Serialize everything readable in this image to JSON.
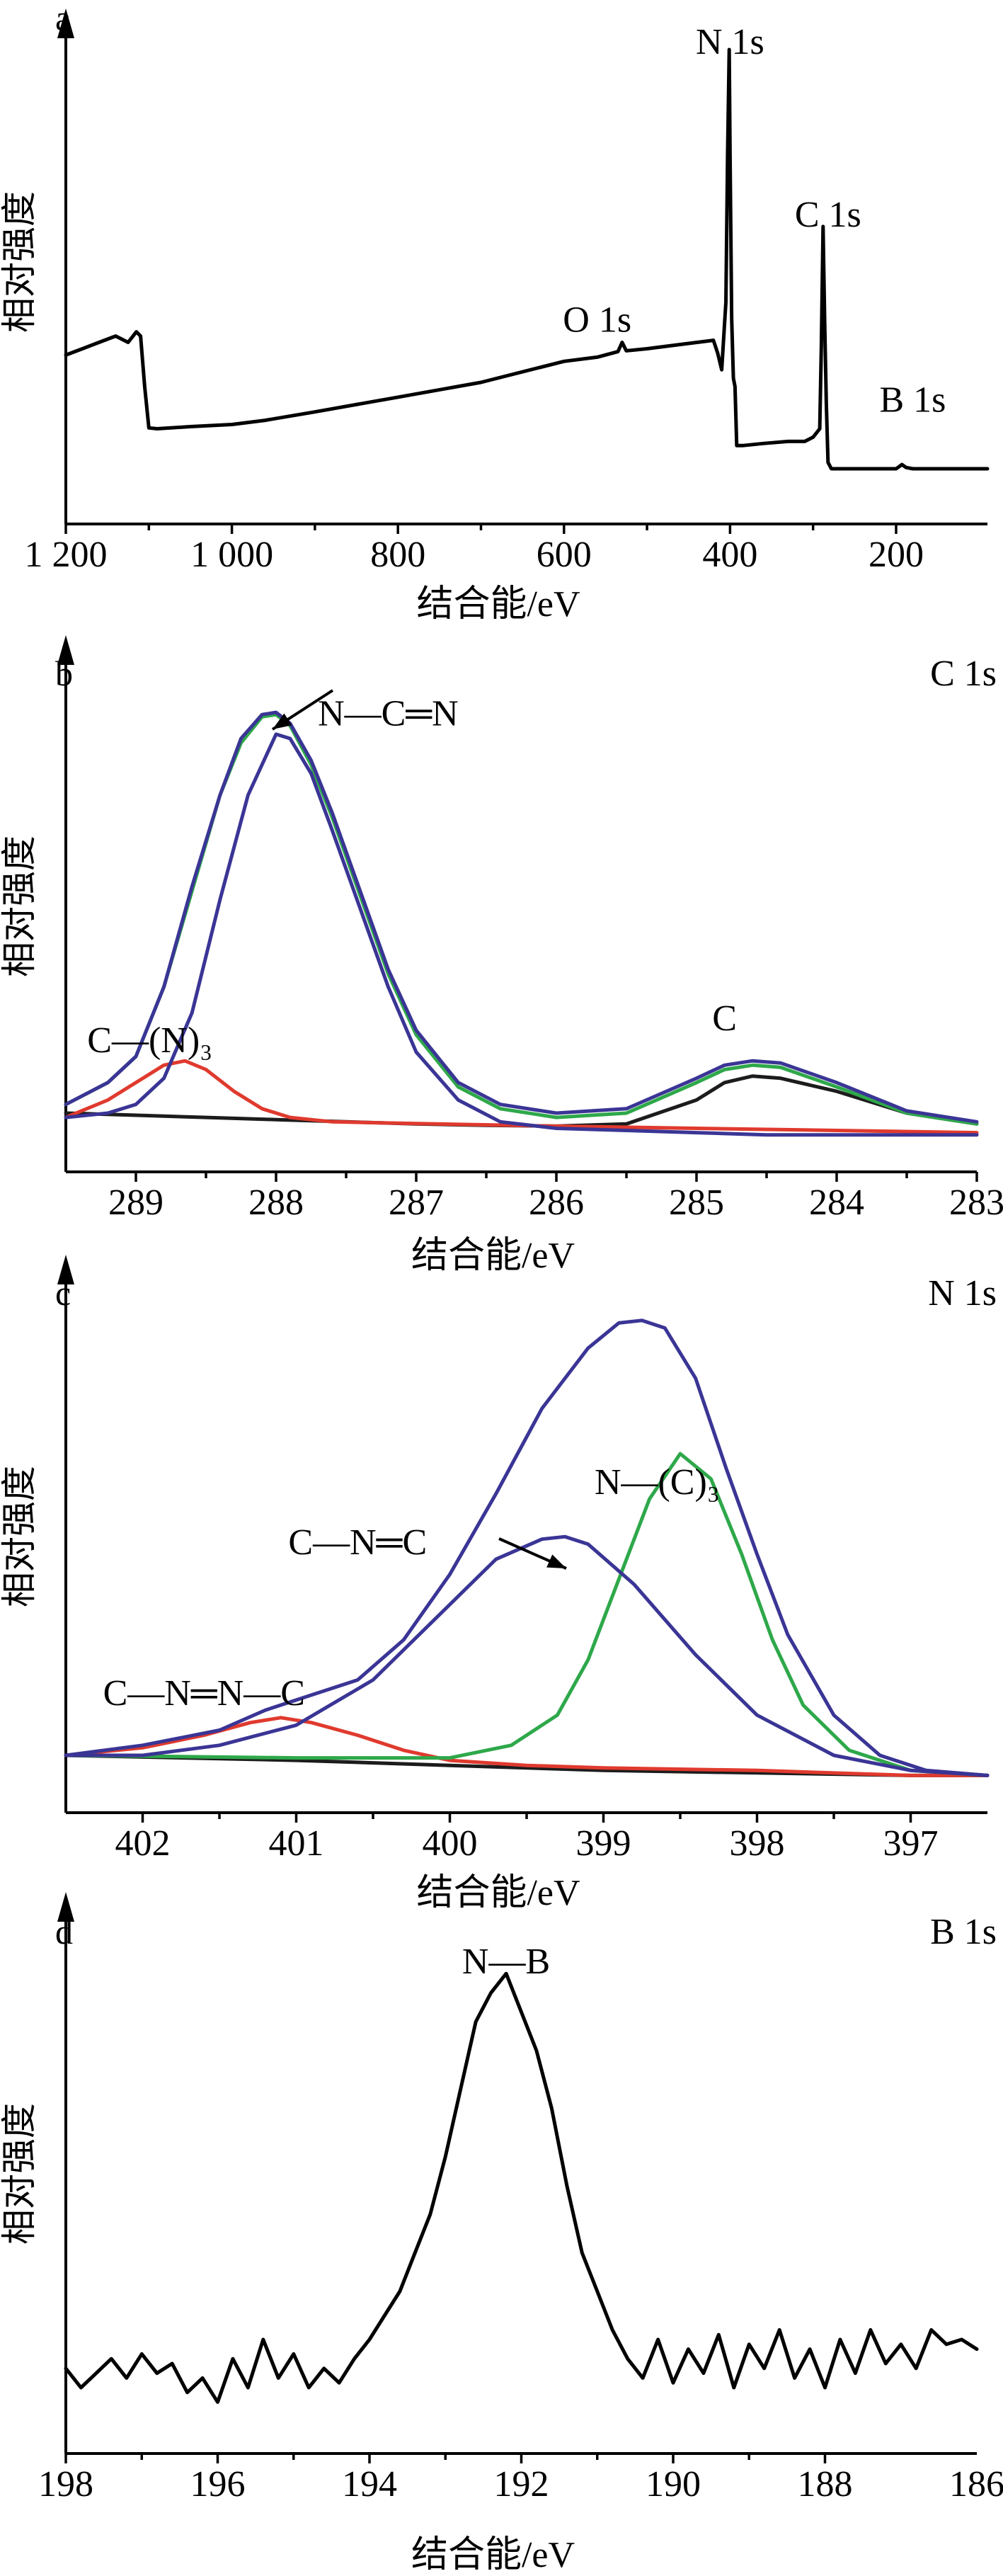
{
  "figure": {
    "y_label": "相对强度",
    "x_label": "结合能/eV"
  },
  "chart_data": [
    {
      "type": "line",
      "panel": "a",
      "xlim": [
        1200,
        90
      ],
      "ylim": [
        0,
        1
      ],
      "ticks": [
        {
          "value": 1200,
          "label": "1 200"
        },
        {
          "value": 1000,
          "label": "1 000"
        },
        {
          "value": 800,
          "label": "800"
        },
        {
          "value": 600,
          "label": "600"
        },
        {
          "value": 400,
          "label": "400"
        },
        {
          "value": 200,
          "label": "200"
        }
      ],
      "xlabel": "结合能/eV",
      "ylabel": "相对强度",
      "annotations": [
        {
          "text": "N 1s",
          "x": 400,
          "y": 0.99
        },
        {
          "text": "C 1s",
          "x": 282,
          "y": 0.58
        },
        {
          "text": "O 1s",
          "x": 560,
          "y": 0.33
        },
        {
          "text": "B 1s",
          "x": 180,
          "y": 0.14
        }
      ],
      "series": [
        {
          "color": "#000000",
          "x": [
            1200,
            1180,
            1160,
            1140,
            1125,
            1115,
            1110,
            1105,
            1100,
            1090,
            1050,
            1000,
            960,
            900,
            800,
            700,
            600,
            560,
            535,
            530,
            525,
            500,
            460,
            420,
            415,
            410,
            405,
            403,
            401,
            400,
            398,
            396,
            394,
            392,
            390,
            385,
            360,
            330,
            310,
            300,
            292,
            290,
            288,
            286,
            284,
            282,
            278,
            270,
            250,
            220,
            200,
            193,
            188,
            180,
            150,
            120,
            90
          ],
          "y": [
            0.275,
            0.29,
            0.305,
            0.32,
            0.305,
            0.33,
            0.32,
            0.2,
            0.102,
            0.1,
            0.105,
            0.11,
            0.12,
            0.14,
            0.175,
            0.21,
            0.26,
            0.27,
            0.283,
            0.305,
            0.285,
            0.29,
            0.3,
            0.31,
            0.28,
            0.24,
            0.4,
            0.75,
            1.0,
            0.75,
            0.36,
            0.22,
            0.2,
            0.06,
            0.06,
            0.06,
            0.065,
            0.07,
            0.07,
            0.08,
            0.1,
            0.3,
            0.58,
            0.35,
            0.16,
            0.02,
            0.005,
            0.005,
            0.005,
            0.005,
            0.005,
            0.015,
            0.008,
            0.005,
            0.005,
            0.005,
            0.005
          ]
        }
      ]
    },
    {
      "type": "line",
      "panel": "b",
      "tag": "C 1s",
      "xlim": [
        289.5,
        283
      ],
      "ylim": [
        0,
        1
      ],
      "ticks": [
        {
          "value": 289,
          "label": "289"
        },
        {
          "value": 288,
          "label": "288"
        },
        {
          "value": 287,
          "label": "287"
        },
        {
          "value": 286,
          "label": "286"
        },
        {
          "value": 285,
          "label": "285"
        },
        {
          "value": 284,
          "label": "284"
        },
        {
          "value": 283,
          "label": "283"
        }
      ],
      "xlabel": "结合能/eV",
      "ylabel": "相对强度",
      "annotations": [
        {
          "text": "N—C═N",
          "x": 287.2,
          "y": 0.96
        },
        {
          "text": "C—(N)₃",
          "x": 288.9,
          "y": 0.21
        },
        {
          "text": "C",
          "x": 284.8,
          "y": 0.26
        }
      ],
      "series": [
        {
          "color": "#1c1c1c",
          "x": [
            289.5,
            289,
            288.5,
            288,
            287.5,
            287,
            286.5,
            286,
            285.5,
            285,
            284.8,
            284.6,
            284.4,
            284,
            283.5,
            283
          ],
          "y": [
            0.07,
            0.065,
            0.06,
            0.055,
            0.05,
            0.045,
            0.042,
            0.04,
            0.045,
            0.1,
            0.14,
            0.155,
            0.15,
            0.12,
            0.07,
            0.045
          ]
        },
        {
          "color": "#e03a2e",
          "x": [
            289.5,
            289.2,
            289,
            288.8,
            288.65,
            288.5,
            288.3,
            288.1,
            287.9,
            287.6,
            287,
            286,
            285,
            284,
            283
          ],
          "y": [
            0.06,
            0.1,
            0.14,
            0.18,
            0.19,
            0.17,
            0.12,
            0.08,
            0.06,
            0.05,
            0.046,
            0.04,
            0.035,
            0.03,
            0.025
          ]
        },
        {
          "color": "#2ea84a",
          "x": [
            289.5,
            289.2,
            289,
            288.8,
            288.6,
            288.4,
            288.25,
            288.1,
            288,
            287.9,
            287.75,
            287.6,
            287.4,
            287.2,
            287,
            286.7,
            286.4,
            286,
            285.5,
            285,
            284.8,
            284.6,
            284.4,
            284,
            283.5,
            283
          ],
          "y": [
            0.09,
            0.14,
            0.2,
            0.36,
            0.58,
            0.8,
            0.92,
            0.98,
            0.985,
            0.96,
            0.87,
            0.75,
            0.57,
            0.39,
            0.25,
            0.13,
            0.08,
            0.06,
            0.07,
            0.14,
            0.17,
            0.18,
            0.175,
            0.13,
            0.07,
            0.045
          ]
        },
        {
          "color": "#3a3595",
          "x": [
            289.5,
            289.2,
            289,
            288.8,
            288.6,
            288.4,
            288.25,
            288.1,
            288,
            287.9,
            287.75,
            287.6,
            287.4,
            287.2,
            287,
            286.7,
            286.4,
            286,
            285.5,
            285,
            284.8,
            284.6,
            284.4,
            284,
            283.5,
            283
          ],
          "y": [
            0.09,
            0.14,
            0.2,
            0.36,
            0.59,
            0.8,
            0.93,
            0.985,
            0.99,
            0.965,
            0.88,
            0.76,
            0.58,
            0.4,
            0.26,
            0.14,
            0.09,
            0.07,
            0.08,
            0.15,
            0.18,
            0.19,
            0.185,
            0.14,
            0.075,
            0.05
          ]
        },
        {
          "color": "#3a3595",
          "x": [
            289.5,
            289.2,
            289,
            288.8,
            288.6,
            288.4,
            288.2,
            288,
            287.9,
            287.75,
            287.6,
            287.4,
            287.2,
            287,
            286.7,
            286.4,
            286,
            285.5,
            285,
            284.5,
            284,
            283.5,
            283
          ],
          "y": [
            0.06,
            0.07,
            0.09,
            0.15,
            0.3,
            0.56,
            0.8,
            0.94,
            0.93,
            0.85,
            0.72,
            0.54,
            0.36,
            0.21,
            0.1,
            0.05,
            0.035,
            0.03,
            0.025,
            0.02,
            0.02,
            0.02,
            0.02
          ]
        }
      ]
    },
    {
      "type": "line",
      "panel": "c",
      "tag": "N 1s",
      "xlim": [
        402.5,
        396.5
      ],
      "ylim": [
        0,
        1
      ],
      "ticks": [
        {
          "value": 402,
          "label": "402"
        },
        {
          "value": 401,
          "label": "401"
        },
        {
          "value": 400,
          "label": "400"
        },
        {
          "value": 399,
          "label": "399"
        },
        {
          "value": 398,
          "label": "398"
        },
        {
          "value": 397,
          "label": "397"
        }
      ],
      "xlabel": "结合能/eV",
      "ylabel": "相对强度",
      "annotations": [
        {
          "text": "N—(C)₃",
          "x": 398.65,
          "y": 0.62
        },
        {
          "text": "C—N═C",
          "x": 400.6,
          "y": 0.5
        },
        {
          "text": "C—N═N—C",
          "x": 401.6,
          "y": 0.2
        }
      ],
      "series": [
        {
          "color": "#1c1c1c",
          "x": [
            402.5,
            401,
            400,
            399,
            398,
            397,
            396.5
          ],
          "y": [
            0.1,
            0.09,
            0.08,
            0.07,
            0.065,
            0.06,
            0.06
          ]
        },
        {
          "color": "#e03a2e",
          "x": [
            402.5,
            402,
            401.6,
            401.3,
            401.1,
            400.9,
            400.6,
            400.3,
            400,
            399.5,
            399,
            398,
            397,
            396.5
          ],
          "y": [
            0.1,
            0.115,
            0.14,
            0.165,
            0.175,
            0.165,
            0.14,
            0.11,
            0.09,
            0.08,
            0.075,
            0.07,
            0.06,
            0.06
          ]
        },
        {
          "color": "#2ea84a",
          "x": [
            402.5,
            401,
            400,
            399.6,
            399.3,
            399.1,
            398.9,
            398.7,
            398.5,
            398.3,
            398.1,
            397.9,
            397.7,
            397.4,
            397,
            396.5
          ],
          "y": [
            0.1,
            0.095,
            0.095,
            0.12,
            0.18,
            0.29,
            0.45,
            0.61,
            0.7,
            0.65,
            0.5,
            0.33,
            0.2,
            0.11,
            0.07,
            0.06
          ]
        },
        {
          "color": "#3a3595",
          "x": [
            402.5,
            402,
            401.5,
            401,
            400.5,
            400,
            399.7,
            399.4,
            399.25,
            399.1,
            398.8,
            398.4,
            398,
            397.5,
            397,
            396.5
          ],
          "y": [
            0.1,
            0.1,
            0.12,
            0.16,
            0.25,
            0.4,
            0.49,
            0.53,
            0.535,
            0.52,
            0.44,
            0.3,
            0.18,
            0.1,
            0.07,
            0.06
          ]
        },
        {
          "color": "#3a3595",
          "x": [
            402.5,
            402,
            401.5,
            401.2,
            400.9,
            400.6,
            400.3,
            400,
            399.7,
            399.4,
            399.1,
            398.9,
            398.75,
            398.6,
            398.4,
            398.2,
            398,
            397.8,
            397.5,
            397.2,
            396.9,
            396.5
          ],
          "y": [
            0.1,
            0.12,
            0.15,
            0.19,
            0.22,
            0.25,
            0.33,
            0.46,
            0.62,
            0.79,
            0.91,
            0.96,
            0.965,
            0.95,
            0.85,
            0.67,
            0.5,
            0.34,
            0.18,
            0.1,
            0.07,
            0.06
          ]
        }
      ]
    },
    {
      "type": "line",
      "panel": "d",
      "tag": "B 1s",
      "xlim": [
        198,
        186
      ],
      "ylim": [
        0,
        1
      ],
      "ticks": [
        {
          "value": 198,
          "label": "198"
        },
        {
          "value": 196,
          "label": "196"
        },
        {
          "value": 194,
          "label": "194"
        },
        {
          "value": 192,
          "label": "192"
        },
        {
          "value": 190,
          "label": "190"
        },
        {
          "value": 188,
          "label": "188"
        }
      ],
      "extra_tick_labels": [
        {
          "value": 186,
          "label": "186"
        }
      ],
      "xlabel": "结合能/eV",
      "ylabel": "相对强度",
      "annotations": [
        {
          "text": "N—B",
          "x": 192.2,
          "y": 0.96
        }
      ],
      "series": [
        {
          "color": "#000000",
          "x": [
            198,
            197.8,
            197.6,
            197.4,
            197.2,
            197,
            196.8,
            196.6,
            196.4,
            196.2,
            196,
            195.8,
            195.6,
            195.4,
            195.2,
            195,
            194.8,
            194.6,
            194.4,
            194.2,
            194,
            193.8,
            193.6,
            193.4,
            193.2,
            193,
            192.8,
            192.6,
            192.4,
            192.2,
            192,
            191.8,
            191.6,
            191.4,
            191.2,
            191,
            190.8,
            190.6,
            190.4,
            190.2,
            190,
            189.8,
            189.6,
            189.4,
            189.2,
            189,
            188.8,
            188.6,
            188.4,
            188.2,
            188,
            187.8,
            187.6,
            187.4,
            187.2,
            187,
            186.8,
            186.6,
            186.4,
            186.2,
            186
          ],
          "y": [
            0.14,
            0.1,
            0.13,
            0.16,
            0.12,
            0.17,
            0.13,
            0.15,
            0.09,
            0.12,
            0.07,
            0.16,
            0.1,
            0.2,
            0.12,
            0.17,
            0.1,
            0.14,
            0.11,
            0.16,
            0.2,
            0.25,
            0.3,
            0.38,
            0.46,
            0.58,
            0.72,
            0.86,
            0.92,
            0.96,
            0.88,
            0.8,
            0.68,
            0.52,
            0.38,
            0.3,
            0.22,
            0.16,
            0.12,
            0.2,
            0.11,
            0.18,
            0.13,
            0.21,
            0.1,
            0.19,
            0.14,
            0.22,
            0.12,
            0.18,
            0.1,
            0.2,
            0.13,
            0.22,
            0.15,
            0.19,
            0.14,
            0.22,
            0.19,
            0.2,
            0.18
          ]
        }
      ]
    }
  ]
}
